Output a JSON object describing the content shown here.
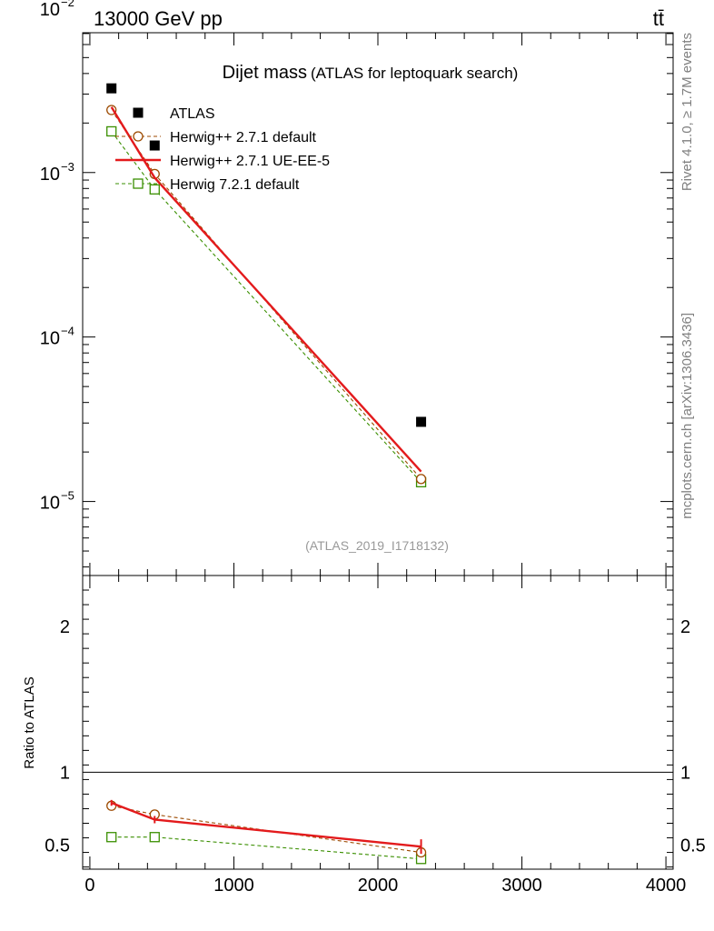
{
  "header": {
    "energy_label": "13000 GeV pp",
    "process_label": "tt̄"
  },
  "side_labels": {
    "rivet": "Rivet 4.1.0, ≥ 1.7M events",
    "mcplots": "mcplots.cern.ch [arXiv:1306.3436]"
  },
  "chart_data": {
    "type": "line",
    "title": "Dijet mass",
    "subtitle": "(ATLAS for leptoquark search)",
    "analysis_id": "(ATLAS_2019_I1718132)",
    "xlabel": "",
    "ylabel": "",
    "xlim": [
      -50,
      4050
    ],
    "xticks": [
      0,
      1000,
      2000,
      3000,
      4000
    ],
    "xtick_labels": [
      "0",
      "1000",
      "2000",
      "3000",
      "4000"
    ],
    "main": {
      "scale": "log",
      "ylim_exp": [
        -5.45,
        -2.15
      ],
      "ytick_exponents": [
        -5,
        -4,
        -3,
        -2
      ],
      "ytick_labels": [
        "10",
        "10",
        "10",
        "10"
      ],
      "ytick_superscripts": [
        "−5",
        "−4",
        "−3",
        "−2"
      ]
    },
    "ratio": {
      "ylabel": "Ratio to ATLAS",
      "ylim": [
        0.335,
        2.35
      ],
      "yticks": [
        0.5,
        1,
        2
      ],
      "ytick_labels": [
        "0.5",
        "1",
        "2"
      ],
      "reference": 1
    },
    "x": [
      150,
      450,
      2300
    ],
    "series": [
      {
        "name": "ATLAS",
        "role": "data",
        "color": "#000000",
        "marker": "filled-square",
        "line": "none",
        "values": [
          0.00325,
          0.00146,
          3.05e-05
        ]
      },
      {
        "name": "Herwig++ 2.7.1 default",
        "role": "mc",
        "color": "#9c4a00",
        "marker": "open-circle",
        "line": "dashed",
        "values": [
          0.0024,
          0.00098,
          1.37e-05
        ],
        "ratio": [
          0.77,
          0.71,
          0.45
        ]
      },
      {
        "name": "Herwig++ 2.7.1 UE-EE-5",
        "role": "mc",
        "color": "#e31a1c",
        "marker": "none",
        "line": "solid",
        "values": [
          0.0025,
          0.00093,
          1.52e-05
        ],
        "ratio": [
          0.79,
          0.675,
          0.49
        ],
        "ratio_err": [
          0.02,
          0.025,
          0.05
        ]
      },
      {
        "name": "Herwig 7.2.1 default",
        "role": "mc",
        "color": "#3a8f00",
        "marker": "open-square",
        "line": "dashed",
        "values": [
          0.00178,
          0.00079,
          1.31e-05
        ],
        "ratio": [
          0.555,
          0.555,
          0.405
        ]
      }
    ]
  }
}
